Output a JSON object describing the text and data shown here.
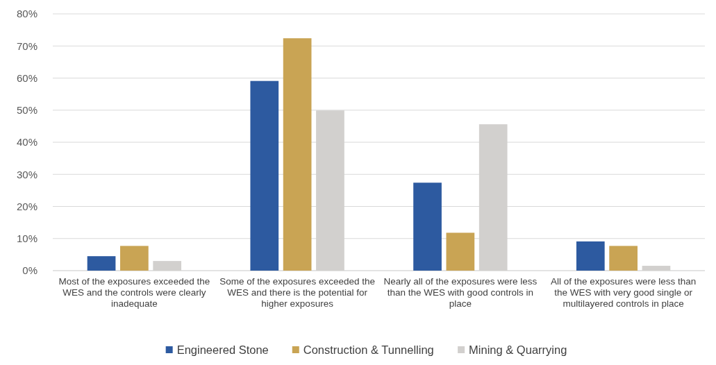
{
  "chart_data": {
    "type": "bar",
    "categories": [
      "Most of the exposures exceeded the WES and the controls were clearly inadequate",
      "Some of the exposures exceeded the WES and there is the potential for higher exposures",
      "Nearly all of the exposures were less than the WES with good controls in place",
      "All of the exposures were less than the WES with very good single or multilayered controls in place"
    ],
    "series": [
      {
        "name": "Engineered Stone",
        "color": "#2d5aa0",
        "values": [
          4.5,
          59.1,
          27.4,
          9.1
        ]
      },
      {
        "name": "Construction & Tunnelling",
        "color": "#c9a454",
        "values": [
          7.7,
          72.4,
          11.8,
          7.7
        ]
      },
      {
        "name": "Mining & Quarrying",
        "color": "#d2d0ce",
        "values": [
          3.0,
          49.9,
          45.6,
          1.5
        ]
      }
    ],
    "ylim": [
      0,
      80
    ],
    "yticks": [
      {
        "value": 0,
        "label": "0%"
      },
      {
        "value": 10,
        "label": "10%"
      },
      {
        "value": 20,
        "label": "20%"
      },
      {
        "value": 30,
        "label": "30%"
      },
      {
        "value": 40,
        "label": "40%"
      },
      {
        "value": 50,
        "label": "50%"
      },
      {
        "value": 60,
        "label": "60%"
      },
      {
        "value": 70,
        "label": "70%"
      },
      {
        "value": 80,
        "label": "80%"
      }
    ],
    "grid": "y",
    "legend": "bottom"
  }
}
